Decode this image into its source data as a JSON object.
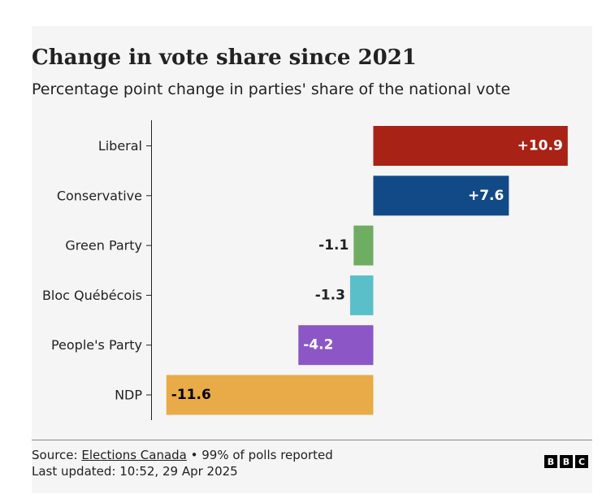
{
  "header": {
    "title": "Change in vote share since 2021",
    "subtitle": "Percentage point change in parties' share of the national vote"
  },
  "chart_data": {
    "type": "bar",
    "orientation": "horizontal",
    "categories": [
      "Liberal",
      "Conservative",
      "Green Party",
      "Bloc Québécois",
      "People's Party",
      "NDP"
    ],
    "values": [
      10.9,
      7.6,
      -1.1,
      -1.3,
      -4.2,
      -11.6
    ],
    "data_labels": [
      "+10.9",
      "+7.6",
      "-1.1",
      "-1.3",
      "-4.2",
      "-11.6"
    ],
    "colors": [
      "#a82216",
      "#124a87",
      "#6fad62",
      "#5bbfc9",
      "#8c56c6",
      "#e8ab47"
    ],
    "xlim": [
      -12.0,
      11.0
    ],
    "grid": false,
    "legend": "none"
  },
  "footer": {
    "source_prefix": "Source: ",
    "source_link": "Elections Canada",
    "source_suffix": " • 99% of polls reported",
    "updated": "Last updated: 10:52, 29 Apr 2025"
  },
  "logo": {
    "letters": [
      "B",
      "B",
      "C"
    ]
  }
}
